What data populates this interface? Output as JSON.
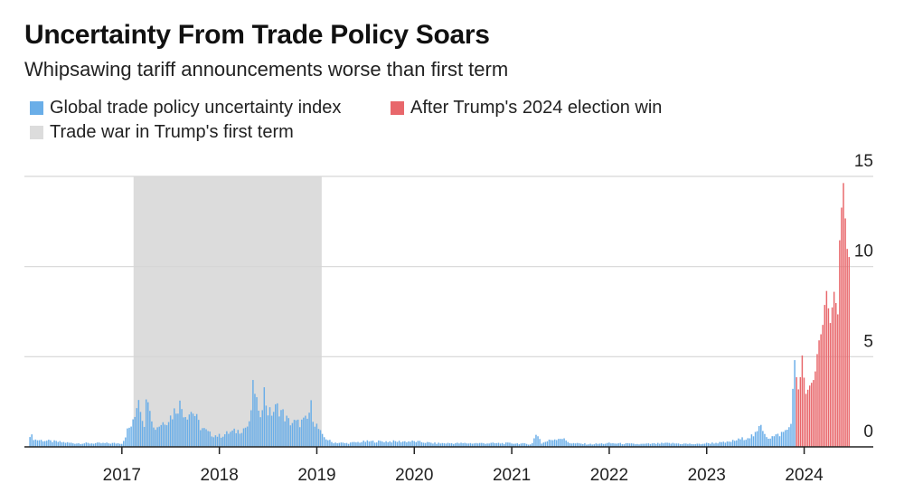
{
  "colors": {
    "index": "#6aaee8",
    "post_election": "#e8676b",
    "shade": "#dcdcdc",
    "grid": "#d6d6d6",
    "axis": "#222222"
  },
  "chart_data": {
    "type": "bar",
    "title": "Uncertainty From Trade Policy Soars",
    "subtitle": "Whipsawing tariff announcements worse than first term",
    "legend": [
      {
        "label": "Global trade policy uncertainty index",
        "color": "#6aaee8"
      },
      {
        "label": "After Trump's 2024 election win",
        "color": "#e8676b"
      },
      {
        "label": "Trade war in Trump's first term",
        "color": "#dcdcdc"
      }
    ],
    "xlim": [
      2016.0,
      2024.95
    ],
    "ylim": [
      0,
      15
    ],
    "x_ticks": [
      2017,
      2018,
      2019,
      2020,
      2021,
      2022,
      2023,
      2024
    ],
    "x_tick_labels": [
      "2017",
      "2018",
      "2019",
      "2020",
      "2021",
      "2022",
      "2023",
      "2024"
    ],
    "y_ticks": [
      0,
      5,
      10,
      15
    ],
    "y_tick_labels": [
      "0",
      "5",
      "10",
      "15"
    ],
    "y_axis_position": "right",
    "shaded_period": [
      2017.12,
      2019.05
    ],
    "election_split": 2023.9,
    "series_anchors": [
      [
        2016.0,
        0.3
      ],
      [
        2016.05,
        0.7
      ],
      [
        2016.1,
        0.4
      ],
      [
        2016.3,
        0.3
      ],
      [
        2016.5,
        0.2
      ],
      [
        2016.7,
        0.2
      ],
      [
        2016.9,
        0.2
      ],
      [
        2017.0,
        0.2
      ],
      [
        2017.05,
        0.9
      ],
      [
        2017.12,
        1.4
      ],
      [
        2017.16,
        3.0
      ],
      [
        2017.22,
        1.2
      ],
      [
        2017.26,
        3.2
      ],
      [
        2017.32,
        1.0
      ],
      [
        2017.4,
        1.3
      ],
      [
        2017.5,
        1.7
      ],
      [
        2017.58,
        2.4
      ],
      [
        2017.65,
        1.8
      ],
      [
        2017.72,
        2.0
      ],
      [
        2017.8,
        1.1
      ],
      [
        2017.9,
        0.7
      ],
      [
        2018.0,
        0.6
      ],
      [
        2018.1,
        0.8
      ],
      [
        2018.2,
        0.9
      ],
      [
        2018.3,
        1.2
      ],
      [
        2018.35,
        3.6
      ],
      [
        2018.4,
        1.5
      ],
      [
        2018.45,
        3.1
      ],
      [
        2018.5,
        1.8
      ],
      [
        2018.6,
        2.2
      ],
      [
        2018.7,
        1.4
      ],
      [
        2018.8,
        1.3
      ],
      [
        2018.9,
        1.5
      ],
      [
        2018.93,
        2.3
      ],
      [
        2018.97,
        1.4
      ],
      [
        2019.05,
        0.6
      ],
      [
        2019.15,
        0.25
      ],
      [
        2019.3,
        0.2
      ],
      [
        2019.5,
        0.3
      ],
      [
        2019.7,
        0.3
      ],
      [
        2019.9,
        0.3
      ],
      [
        2020.0,
        0.3
      ],
      [
        2020.2,
        0.2
      ],
      [
        2020.5,
        0.2
      ],
      [
        2020.8,
        0.2
      ],
      [
        2021.0,
        0.2
      ],
      [
        2021.2,
        0.15
      ],
      [
        2021.25,
        0.8
      ],
      [
        2021.3,
        0.2
      ],
      [
        2021.4,
        0.4
      ],
      [
        2021.5,
        0.5
      ],
      [
        2021.6,
        0.2
      ],
      [
        2021.8,
        0.15
      ],
      [
        2022.0,
        0.2
      ],
      [
        2022.3,
        0.15
      ],
      [
        2022.6,
        0.2
      ],
      [
        2022.9,
        0.15
      ],
      [
        2023.0,
        0.2
      ],
      [
        2023.2,
        0.25
      ],
      [
        2023.4,
        0.5
      ],
      [
        2023.5,
        0.7
      ],
      [
        2023.55,
        1.2
      ],
      [
        2023.62,
        0.5
      ],
      [
        2023.7,
        0.6
      ],
      [
        2023.78,
        0.8
      ],
      [
        2023.85,
        1.1
      ],
      [
        2023.9,
        4.4
      ],
      [
        2023.94,
        3.0
      ],
      [
        2023.98,
        5.5
      ],
      [
        2024.0,
        2.8
      ],
      [
        2024.05,
        3.4
      ],
      [
        2024.1,
        3.8
      ],
      [
        2024.14,
        5.8
      ],
      [
        2024.18,
        6.5
      ],
      [
        2024.22,
        8.8
      ],
      [
        2024.26,
        6.8
      ],
      [
        2024.3,
        8.6
      ],
      [
        2024.34,
        7.3
      ],
      [
        2024.36,
        12.0
      ],
      [
        2024.38,
        13.5
      ],
      [
        2024.4,
        14.9
      ],
      [
        2024.42,
        12.0
      ],
      [
        2024.44,
        10.6
      ],
      [
        2024.46,
        10.5
      ]
    ]
  }
}
